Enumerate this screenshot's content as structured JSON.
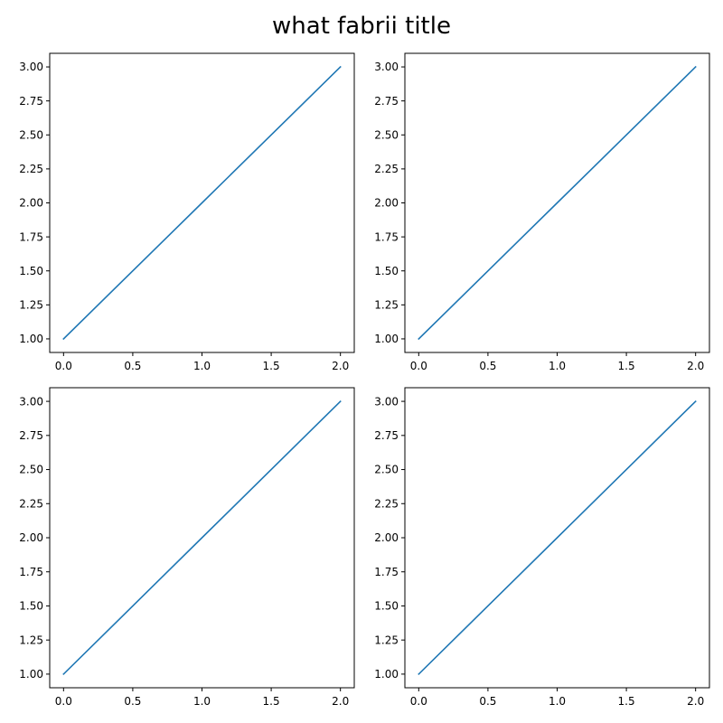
{
  "figure": {
    "title": "what fabrii title"
  },
  "chart_data": [
    {
      "type": "line",
      "title": "",
      "xlabel": "",
      "ylabel": "",
      "xlim": [
        -0.1,
        2.1
      ],
      "ylim": [
        0.9,
        3.1
      ],
      "xticks": [
        0.0,
        0.5,
        1.0,
        1.5,
        2.0
      ],
      "xtick_labels": [
        "0.0",
        "0.5",
        "1.0",
        "1.5",
        "2.0"
      ],
      "yticks": [
        1.0,
        1.25,
        1.5,
        1.75,
        2.0,
        2.25,
        2.5,
        2.75,
        3.0
      ],
      "ytick_labels": [
        "1.00",
        "1.25",
        "1.50",
        "1.75",
        "2.00",
        "2.25",
        "2.50",
        "2.75",
        "3.00"
      ],
      "grid": false,
      "series": [
        {
          "x": [
            0,
            1,
            2
          ],
          "y": [
            1,
            2,
            3
          ],
          "color": "#1f77b4"
        }
      ]
    },
    {
      "type": "line",
      "title": "",
      "xlabel": "",
      "ylabel": "",
      "xlim": [
        -0.1,
        2.1
      ],
      "ylim": [
        0.9,
        3.1
      ],
      "xticks": [
        0.0,
        0.5,
        1.0,
        1.5,
        2.0
      ],
      "xtick_labels": [
        "0.0",
        "0.5",
        "1.0",
        "1.5",
        "2.0"
      ],
      "yticks": [
        1.0,
        1.25,
        1.5,
        1.75,
        2.0,
        2.25,
        2.5,
        2.75,
        3.0
      ],
      "ytick_labels": [
        "1.00",
        "1.25",
        "1.50",
        "1.75",
        "2.00",
        "2.25",
        "2.50",
        "2.75",
        "3.00"
      ],
      "grid": false,
      "series": [
        {
          "x": [
            0,
            1,
            2
          ],
          "y": [
            1,
            2,
            3
          ],
          "color": "#1f77b4"
        }
      ]
    },
    {
      "type": "line",
      "title": "",
      "xlabel": "",
      "ylabel": "",
      "xlim": [
        -0.1,
        2.1
      ],
      "ylim": [
        0.9,
        3.1
      ],
      "xticks": [
        0.0,
        0.5,
        1.0,
        1.5,
        2.0
      ],
      "xtick_labels": [
        "0.0",
        "0.5",
        "1.0",
        "1.5",
        "2.0"
      ],
      "yticks": [
        1.0,
        1.25,
        1.5,
        1.75,
        2.0,
        2.25,
        2.5,
        2.75,
        3.0
      ],
      "ytick_labels": [
        "1.00",
        "1.25",
        "1.50",
        "1.75",
        "2.00",
        "2.25",
        "2.50",
        "2.75",
        "3.00"
      ],
      "grid": false,
      "series": [
        {
          "x": [
            0,
            1,
            2
          ],
          "y": [
            1,
            2,
            3
          ],
          "color": "#1f77b4"
        }
      ]
    },
    {
      "type": "line",
      "title": "",
      "xlabel": "",
      "ylabel": "",
      "xlim": [
        -0.1,
        2.1
      ],
      "ylim": [
        0.9,
        3.1
      ],
      "xticks": [
        0.0,
        0.5,
        1.0,
        1.5,
        2.0
      ],
      "xtick_labels": [
        "0.0",
        "0.5",
        "1.0",
        "1.5",
        "2.0"
      ],
      "yticks": [
        1.0,
        1.25,
        1.5,
        1.75,
        2.0,
        2.25,
        2.5,
        2.75,
        3.0
      ],
      "ytick_labels": [
        "1.00",
        "1.25",
        "1.50",
        "1.75",
        "2.00",
        "2.25",
        "2.50",
        "2.75",
        "3.00"
      ],
      "grid": false,
      "series": [
        {
          "x": [
            0,
            1,
            2
          ],
          "y": [
            1,
            2,
            3
          ],
          "color": "#1f77b4"
        }
      ]
    }
  ]
}
